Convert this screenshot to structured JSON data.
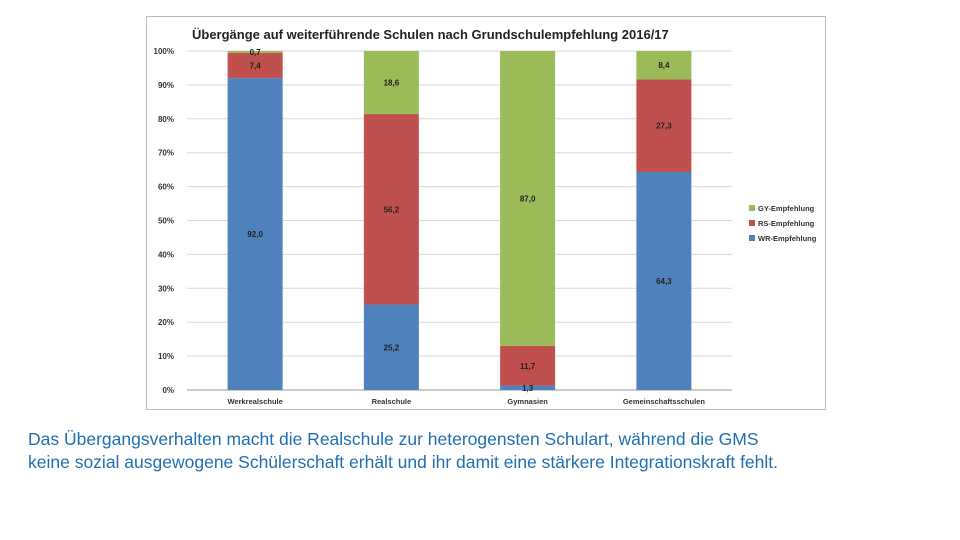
{
  "chart_data": {
    "type": "bar",
    "stacked": true,
    "title": "Übergänge auf weiterführende Schulen nach Grundschulempfehlung 2016/17",
    "categories": [
      "Werkrealschule",
      "Realschule",
      "Gymnasien",
      "Gemeinschaftsschulen"
    ],
    "series": [
      {
        "name": "WR-Empfehlung",
        "color": "#4f81bd",
        "values": [
          92.0,
          25.2,
          1.3,
          64.3
        ],
        "labels": [
          "92,0",
          "25,2",
          "1,3",
          "64,3"
        ]
      },
      {
        "name": "RS-Empfehlung",
        "color": "#c0504d",
        "values": [
          7.4,
          56.2,
          11.7,
          27.3
        ],
        "labels": [
          "7,4",
          "56,2",
          "11,7",
          "27,3"
        ]
      },
      {
        "name": "GY-Empfehlung",
        "color": "#9bbb59",
        "values": [
          0.7,
          18.6,
          87.0,
          8.4
        ],
        "labels": [
          "0,7",
          "18,6",
          "87,0",
          "8,4"
        ]
      }
    ],
    "y_ticks": [
      "0%",
      "10%",
      "20%",
      "30%",
      "40%",
      "50%",
      "60%",
      "70%",
      "80%",
      "90%",
      "100%"
    ],
    "ylim": [
      0,
      100
    ],
    "grid": true,
    "legend_position": "right",
    "legend_order": [
      "GY-Empfehlung",
      "RS-Empfehlung",
      "WR-Empfehlung"
    ]
  },
  "caption": {
    "line1": "Das Übergangsverhalten macht die Realschule zur heterogensten Schulart, während die GMS",
    "line2": "keine sozial ausgewogene Schülerschaft erhält und ihr damit eine stärkere Integrationskraft fehlt."
  }
}
